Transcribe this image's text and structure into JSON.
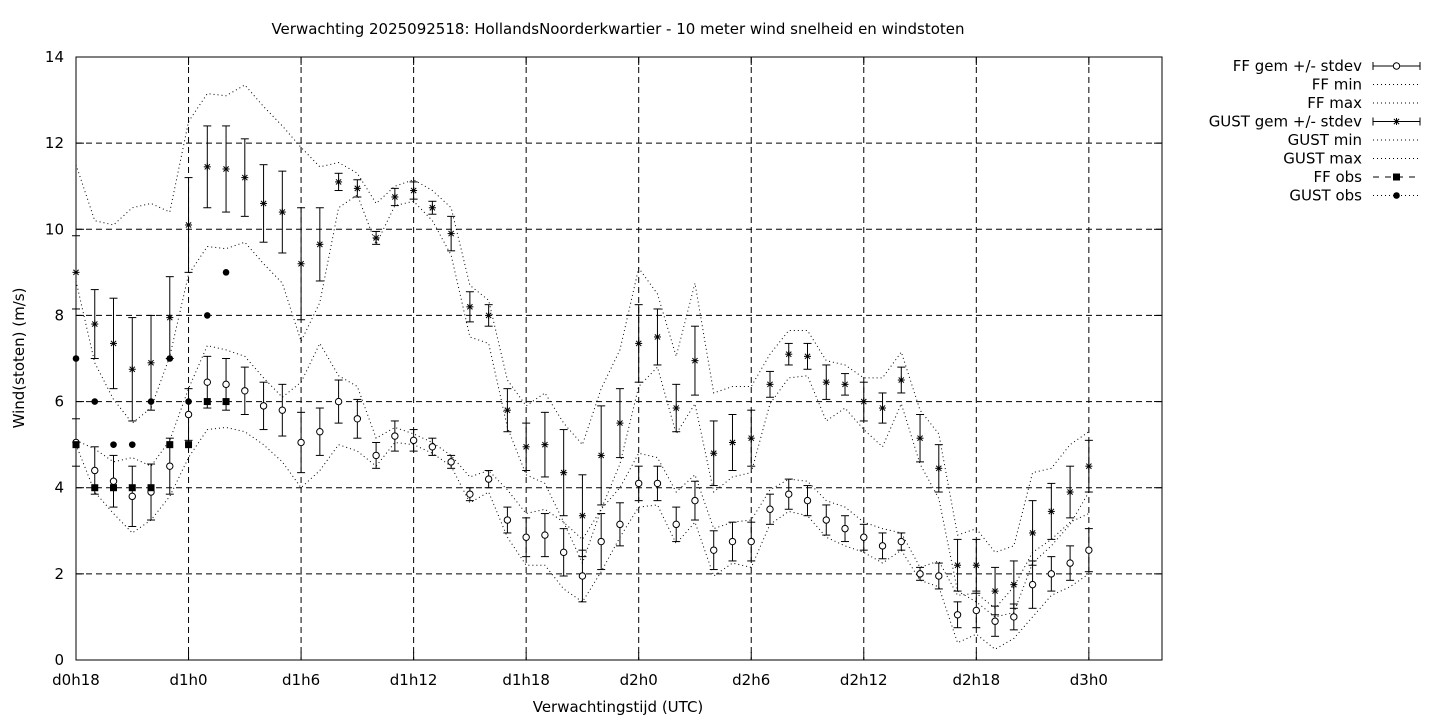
{
  "chart_data": {
    "type": "line",
    "title": "Verwachting 2025092518: HollandsNoorderkwartier - 10 meter wind snelheid en windstoten",
    "xlabel": "Verwachtingstijd (UTC)",
    "ylabel": "Wind(stoten) (m/s)",
    "xlim": [
      18,
      75.9
    ],
    "ylim": [
      0,
      14
    ],
    "yticks": [
      0,
      2,
      4,
      6,
      8,
      10,
      12,
      14
    ],
    "xticks": [
      {
        "x": 18,
        "label": "d0h18"
      },
      {
        "x": 24,
        "label": "d1h0"
      },
      {
        "x": 30,
        "label": "d1h6"
      },
      {
        "x": 36,
        "label": "d1h12"
      },
      {
        "x": 42,
        "label": "d1h18"
      },
      {
        "x": 48,
        "label": "d2h0"
      },
      {
        "x": 54,
        "label": "d2h6"
      },
      {
        "x": 60,
        "label": "d2h12"
      },
      {
        "x": 66,
        "label": "d2h18"
      },
      {
        "x": 72,
        "label": "d3h0"
      }
    ],
    "grid": true,
    "legend_position": "outside-right",
    "legend": [
      "FF gem +/- stdev",
      "FF min",
      "FF max",
      "GUST gem +/- stdev",
      "GUST min",
      "GUST max",
      "FF obs",
      "GUST obs"
    ],
    "x": [
      18,
      19,
      20,
      21,
      22,
      23,
      24,
      25,
      26,
      27,
      28,
      29,
      30,
      31,
      32,
      33,
      34,
      35,
      36,
      37,
      38,
      39,
      40,
      41,
      42,
      43,
      44,
      45,
      46,
      47,
      48,
      49,
      50,
      51,
      52,
      53,
      54,
      55,
      56,
      57,
      58,
      59,
      60,
      61,
      62,
      63,
      64,
      65,
      66,
      67,
      68,
      69,
      70,
      71,
      72
    ],
    "series": [
      {
        "name": "FF gem +/- stdev",
        "marker": "open-circle",
        "values": [
          5.05,
          4.4,
          4.15,
          3.8,
          3.9,
          4.5,
          5.7,
          6.45,
          6.4,
          6.25,
          5.9,
          5.8,
          5.05,
          5.3,
          6.0,
          5.6,
          4.75,
          5.2,
          5.1,
          4.95,
          4.6,
          3.85,
          4.2,
          3.25,
          2.85,
          2.9,
          2.5,
          1.95,
          2.75,
          3.15,
          4.1,
          4.1,
          3.15,
          3.7,
          2.55,
          2.75,
          2.75,
          3.5,
          3.85,
          3.7,
          3.25,
          3.05,
          2.85,
          2.65,
          2.75,
          2.0,
          1.95,
          1.05,
          1.15,
          0.9,
          1.0,
          1.75,
          2.0,
          2.25,
          2.55
        ],
        "stdev": [
          0.55,
          0.55,
          0.6,
          0.7,
          0.65,
          0.65,
          0.6,
          0.6,
          0.6,
          0.55,
          0.55,
          0.6,
          0.7,
          0.55,
          0.5,
          0.45,
          0.3,
          0.35,
          0.25,
          0.2,
          0.15,
          0.15,
          0.2,
          0.3,
          0.45,
          0.5,
          0.55,
          0.6,
          0.65,
          0.5,
          0.4,
          0.4,
          0.4,
          0.45,
          0.45,
          0.45,
          0.45,
          0.35,
          0.35,
          0.35,
          0.35,
          0.3,
          0.3,
          0.3,
          0.2,
          0.15,
          0.3,
          0.3,
          0.4,
          0.35,
          0.3,
          0.55,
          0.4,
          0.4,
          0.5
        ]
      },
      {
        "name": "FF min",
        "values": [
          5.0,
          3.9,
          3.4,
          2.95,
          3.25,
          3.8,
          4.7,
          5.35,
          5.4,
          5.3,
          5.0,
          4.6,
          4.0,
          4.4,
          5.0,
          4.85,
          4.5,
          5.05,
          5.0,
          4.8,
          4.5,
          3.65,
          3.9,
          2.85,
          2.2,
          2.2,
          1.65,
          1.35,
          2.05,
          2.85,
          3.55,
          3.6,
          2.7,
          3.2,
          1.95,
          2.25,
          2.15,
          3.15,
          3.45,
          3.35,
          2.85,
          2.65,
          2.5,
          2.25,
          2.55,
          1.85,
          1.7,
          0.4,
          0.6,
          0.25,
          0.5,
          1.0,
          1.5,
          1.7,
          2.0
        ]
      },
      {
        "name": "FF max",
        "values": [
          5.1,
          4.9,
          4.6,
          4.7,
          4.5,
          5.1,
          6.3,
          7.3,
          7.2,
          7.05,
          6.55,
          6.1,
          6.45,
          7.35,
          6.6,
          6.35,
          5.15,
          5.4,
          5.25,
          5.05,
          4.75,
          4.25,
          4.4,
          3.95,
          3.4,
          3.5,
          3.2,
          2.8,
          3.5,
          4.0,
          4.8,
          4.7,
          3.9,
          4.3,
          3.05,
          3.2,
          3.25,
          3.95,
          4.2,
          4.15,
          3.7,
          3.55,
          3.2,
          3.05,
          2.95,
          2.15,
          2.3,
          1.5,
          1.55,
          1.2,
          1.7,
          2.5,
          2.8,
          3.2,
          3.4
        ]
      },
      {
        "name": "GUST gem +/- stdev",
        "marker": "star",
        "values": [
          9.0,
          7.8,
          7.35,
          6.75,
          6.9,
          7.95,
          10.1,
          11.45,
          11.4,
          11.2,
          10.6,
          10.4,
          9.2,
          9.65,
          11.1,
          10.95,
          9.8,
          10.75,
          10.9,
          10.5,
          9.9,
          8.2,
          8.0,
          5.8,
          4.95,
          5.0,
          4.35,
          3.35,
          4.75,
          5.5,
          7.35,
          7.5,
          5.85,
          6.95,
          4.8,
          5.05,
          5.15,
          6.4,
          7.1,
          7.05,
          6.45,
          6.4,
          6.0,
          5.85,
          6.5,
          5.15,
          4.45,
          2.2,
          2.2,
          1.6,
          1.75,
          2.95,
          3.45,
          3.9,
          4.5
        ],
        "stdev": [
          0.85,
          0.8,
          1.05,
          1.2,
          1.1,
          0.95,
          1.1,
          0.95,
          1.0,
          0.9,
          0.9,
          0.95,
          1.3,
          0.85,
          0.2,
          0.2,
          0.15,
          0.2,
          0.2,
          0.15,
          0.4,
          0.35,
          0.25,
          0.5,
          0.55,
          0.75,
          1.0,
          0.95,
          1.15,
          0.8,
          0.9,
          0.65,
          0.55,
          0.8,
          0.75,
          0.65,
          0.65,
          0.3,
          0.25,
          0.3,
          0.4,
          0.25,
          0.45,
          0.35,
          0.3,
          0.55,
          0.55,
          0.6,
          0.6,
          0.55,
          0.55,
          0.75,
          0.65,
          0.6,
          0.6
        ]
      },
      {
        "name": "GUST min",
        "values": [
          8.8,
          6.9,
          6.05,
          5.5,
          5.85,
          7.05,
          8.95,
          9.6,
          9.55,
          9.7,
          9.2,
          8.75,
          7.4,
          8.3,
          10.5,
          10.8,
          9.65,
          10.55,
          10.65,
          10.2,
          9.4,
          7.5,
          7.35,
          5.4,
          4.3,
          4.1,
          3.2,
          2.25,
          3.5,
          4.55,
          6.35,
          6.8,
          5.25,
          5.95,
          3.9,
          4.25,
          4.35,
          5.95,
          6.55,
          6.6,
          5.55,
          5.85,
          5.35,
          4.95,
          5.95,
          4.55,
          3.75,
          1.6,
          1.35,
          1.0,
          1.1,
          2.25,
          2.65,
          3.15,
          3.9
        ]
      },
      {
        "name": "GUST max",
        "values": [
          11.5,
          10.2,
          10.1,
          10.5,
          10.6,
          10.4,
          12.5,
          13.15,
          13.1,
          13.35,
          12.85,
          12.4,
          11.9,
          11.45,
          11.55,
          11.3,
          10.6,
          11.0,
          11.15,
          10.9,
          10.5,
          8.7,
          8.35,
          6.5,
          5.9,
          6.2,
          5.5,
          5.0,
          6.3,
          7.2,
          9.1,
          8.5,
          7.05,
          8.75,
          6.2,
          6.35,
          6.35,
          7.1,
          7.65,
          7.65,
          6.95,
          6.85,
          6.55,
          6.55,
          7.15,
          5.8,
          5.25,
          2.9,
          3.05,
          2.5,
          2.65,
          4.35,
          4.45,
          5.0,
          5.3
        ]
      },
      {
        "name": "FF obs",
        "marker": "filled-square",
        "x": [
          18,
          19,
          20,
          21,
          22,
          23,
          24,
          25,
          26
        ],
        "values": [
          5,
          4,
          4,
          4,
          4,
          5,
          5,
          6,
          6
        ]
      },
      {
        "name": "GUST obs",
        "marker": "filled-circle",
        "x": [
          18,
          19,
          20,
          21,
          22,
          23,
          24,
          25,
          26
        ],
        "values": [
          7,
          6,
          5,
          5,
          6,
          7,
          6,
          8,
          9
        ]
      }
    ]
  }
}
